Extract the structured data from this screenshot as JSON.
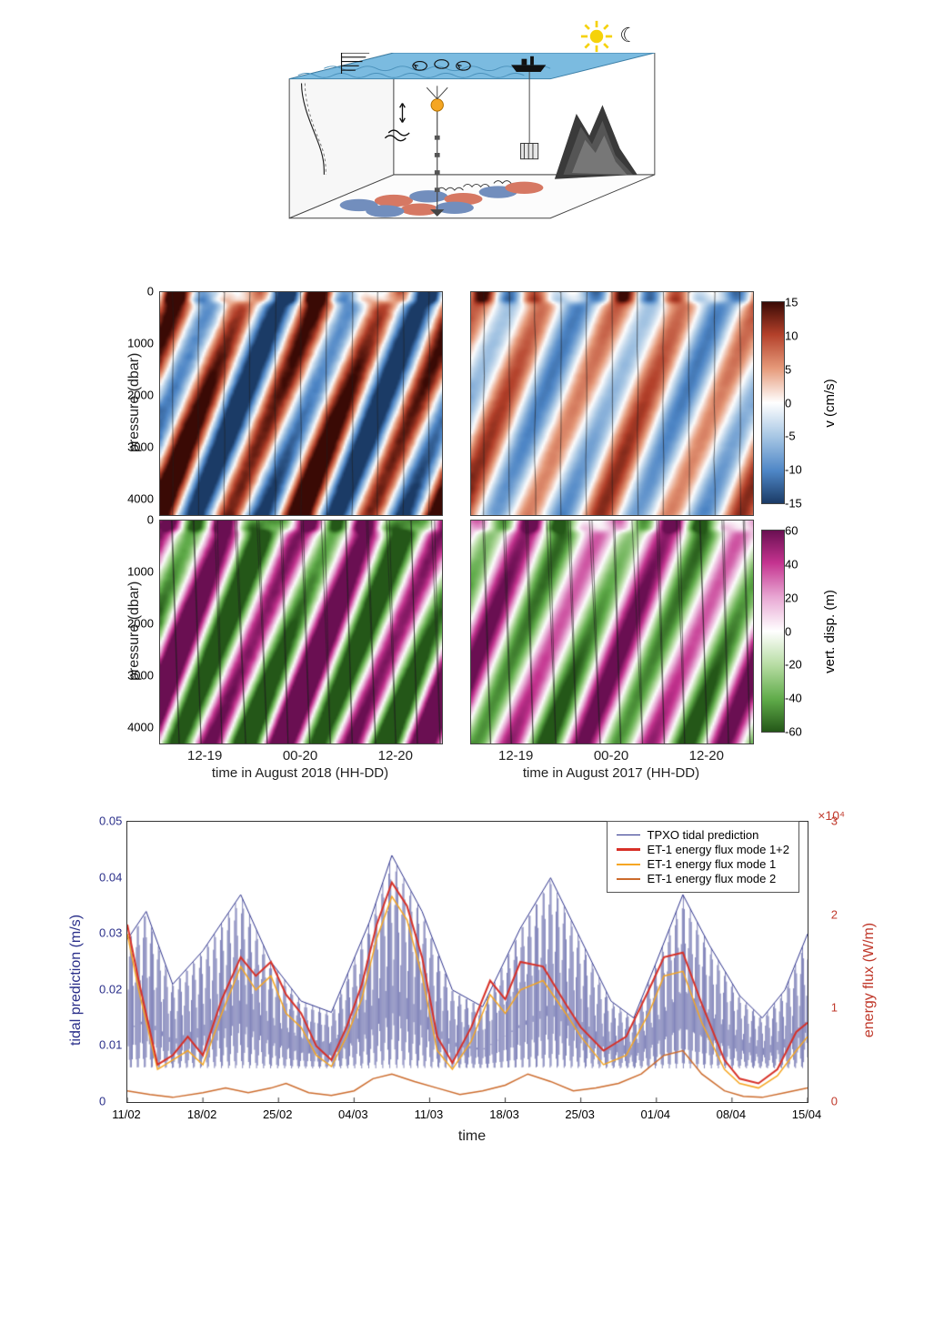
{
  "schematic": {
    "ocean_surface_color": "#7bbbe0",
    "side_wall_color": "#f7f7f7",
    "bottom_pattern_colors": {
      "positive": "#d06249",
      "negative": "#5b7bb3"
    },
    "line_color": "#111111",
    "sun_color": "#f5d20a",
    "moon_glyph": "☾",
    "mooring_float_color": "#f5a623"
  },
  "heatmaps": {
    "y_label": "pressure (dbar)",
    "y_ticks": [
      0,
      1000,
      2000,
      3000,
      4000
    ],
    "x_tick_labels": [
      "12-19",
      "00-20",
      "12-20"
    ],
    "x_label_2018": "time in August 2018 (HH-DD)",
    "x_label_2017": "time in August 2017 (HH-DD)",
    "velocity": {
      "unit_label": "v (cm/s)",
      "ticks": [
        15,
        10,
        5,
        0,
        -5,
        -10,
        -15
      ],
      "cmap_stops": [
        "#3a0a05",
        "#b3402a",
        "#e69a7a",
        "#ffffff",
        "#a6c6e4",
        "#4e86c6",
        "#1b3b66"
      ],
      "cmap_stops_pct": [
        0,
        16,
        33,
        50,
        67,
        84,
        100
      ]
    },
    "displacement": {
      "unit_label": "vert. disp. (m)",
      "ticks": [
        60,
        40,
        20,
        0,
        -20,
        -40,
        -60
      ],
      "cmap_stops": [
        "#6a0f52",
        "#c4338f",
        "#e8a7d3",
        "#ffffff",
        "#b6dca2",
        "#5fab49",
        "#245718"
      ],
      "cmap_stops_pct": [
        0,
        16,
        33,
        50,
        67,
        84,
        100
      ]
    }
  },
  "timeseries": {
    "y_left": {
      "label": "tidal prediction (m/s)",
      "ticks": [
        0,
        0.01,
        0.02,
        0.03,
        0.04,
        0.05
      ],
      "lim": [
        0,
        0.05
      ],
      "color": "#2a2f8a"
    },
    "y_right": {
      "label": "energy flux (W/m)",
      "ticks": [
        0,
        1,
        2,
        3
      ],
      "lim": [
        0,
        3
      ],
      "exponent": "×10⁴",
      "color": "#c0392b"
    },
    "x": {
      "label": "time",
      "ticks": [
        "11/02",
        "18/02",
        "25/02",
        "04/03",
        "11/03",
        "18/03",
        "25/03",
        "01/04",
        "08/04",
        "15/04"
      ]
    },
    "legend": [
      {
        "label": "TPXO tidal prediction",
        "color": "#2a2f8a",
        "width": 1
      },
      {
        "label": "ET-1 energy flux mode 1+2",
        "color": "#d73027",
        "width": 2
      },
      {
        "label": "ET-1 energy flux mode 1",
        "color": "#f5a623",
        "width": 1.5
      },
      {
        "label": "ET-1 energy flux mode 2",
        "color": "#cc6b2c",
        "width": 1.5
      }
    ],
    "tidal_envelope": [
      [
        0,
        0.029
      ],
      [
        0.25,
        0.034
      ],
      [
        0.6,
        0.021
      ],
      [
        1.0,
        0.027
      ],
      [
        1.5,
        0.037
      ],
      [
        1.9,
        0.025
      ],
      [
        2.3,
        0.018
      ],
      [
        2.7,
        0.016
      ],
      [
        3.2,
        0.032
      ],
      [
        3.5,
        0.044
      ],
      [
        3.9,
        0.034
      ],
      [
        4.3,
        0.02
      ],
      [
        4.7,
        0.017
      ],
      [
        5.2,
        0.031
      ],
      [
        5.6,
        0.04
      ],
      [
        6.0,
        0.029
      ],
      [
        6.4,
        0.018
      ],
      [
        6.7,
        0.015
      ],
      [
        7.0,
        0.025
      ],
      [
        7.35,
        0.037
      ],
      [
        7.7,
        0.028
      ],
      [
        8.1,
        0.019
      ],
      [
        8.4,
        0.015
      ],
      [
        8.7,
        0.02
      ],
      [
        9.0,
        0.03
      ]
    ],
    "tidal_lower": 0.006,
    "mode12": [
      [
        0,
        1.9
      ],
      [
        0.15,
        1.3
      ],
      [
        0.4,
        0.4
      ],
      [
        0.6,
        0.5
      ],
      [
        0.8,
        0.7
      ],
      [
        1.0,
        0.5
      ],
      [
        1.25,
        1.1
      ],
      [
        1.5,
        1.55
      ],
      [
        1.7,
        1.35
      ],
      [
        1.9,
        1.5
      ],
      [
        2.1,
        1.15
      ],
      [
        2.3,
        0.95
      ],
      [
        2.5,
        0.6
      ],
      [
        2.7,
        0.45
      ],
      [
        2.9,
        0.8
      ],
      [
        3.1,
        1.25
      ],
      [
        3.3,
        1.9
      ],
      [
        3.5,
        2.35
      ],
      [
        3.7,
        2.1
      ],
      [
        3.9,
        1.55
      ],
      [
        4.1,
        0.7
      ],
      [
        4.3,
        0.42
      ],
      [
        4.55,
        0.8
      ],
      [
        4.8,
        1.3
      ],
      [
        5.0,
        1.1
      ],
      [
        5.2,
        1.5
      ],
      [
        5.5,
        1.45
      ],
      [
        5.8,
        1.05
      ],
      [
        6.0,
        0.8
      ],
      [
        6.3,
        0.55
      ],
      [
        6.6,
        0.7
      ],
      [
        6.9,
        1.2
      ],
      [
        7.1,
        1.55
      ],
      [
        7.35,
        1.6
      ],
      [
        7.6,
        1.05
      ],
      [
        7.9,
        0.45
      ],
      [
        8.1,
        0.25
      ],
      [
        8.35,
        0.2
      ],
      [
        8.6,
        0.35
      ],
      [
        8.85,
        0.75
      ],
      [
        9.0,
        0.85
      ]
    ],
    "mode1": [
      [
        0,
        1.8
      ],
      [
        0.15,
        1.2
      ],
      [
        0.4,
        0.35
      ],
      [
        0.6,
        0.45
      ],
      [
        0.8,
        0.55
      ],
      [
        1.0,
        0.4
      ],
      [
        1.25,
        0.95
      ],
      [
        1.5,
        1.45
      ],
      [
        1.7,
        1.2
      ],
      [
        1.9,
        1.35
      ],
      [
        2.1,
        0.95
      ],
      [
        2.3,
        0.8
      ],
      [
        2.5,
        0.5
      ],
      [
        2.7,
        0.38
      ],
      [
        2.9,
        0.7
      ],
      [
        3.1,
        1.1
      ],
      [
        3.3,
        1.75
      ],
      [
        3.5,
        2.2
      ],
      [
        3.7,
        1.95
      ],
      [
        3.9,
        1.35
      ],
      [
        4.1,
        0.55
      ],
      [
        4.3,
        0.35
      ],
      [
        4.55,
        0.65
      ],
      [
        4.8,
        1.15
      ],
      [
        5.0,
        0.95
      ],
      [
        5.2,
        1.2
      ],
      [
        5.5,
        1.3
      ],
      [
        5.8,
        0.95
      ],
      [
        6.0,
        0.7
      ],
      [
        6.3,
        0.4
      ],
      [
        6.6,
        0.5
      ],
      [
        6.9,
        0.95
      ],
      [
        7.1,
        1.35
      ],
      [
        7.35,
        1.4
      ],
      [
        7.6,
        0.85
      ],
      [
        7.9,
        0.35
      ],
      [
        8.1,
        0.2
      ],
      [
        8.35,
        0.15
      ],
      [
        8.6,
        0.28
      ],
      [
        8.85,
        0.55
      ],
      [
        9.0,
        0.7
      ]
    ],
    "mode2": [
      [
        0,
        0.12
      ],
      [
        0.3,
        0.08
      ],
      [
        0.6,
        0.05
      ],
      [
        1.0,
        0.1
      ],
      [
        1.3,
        0.15
      ],
      [
        1.6,
        0.1
      ],
      [
        1.9,
        0.15
      ],
      [
        2.1,
        0.2
      ],
      [
        2.4,
        0.1
      ],
      [
        2.7,
        0.07
      ],
      [
        3.0,
        0.12
      ],
      [
        3.25,
        0.25
      ],
      [
        3.5,
        0.3
      ],
      [
        3.8,
        0.22
      ],
      [
        4.1,
        0.15
      ],
      [
        4.4,
        0.08
      ],
      [
        4.7,
        0.12
      ],
      [
        5.0,
        0.18
      ],
      [
        5.3,
        0.3
      ],
      [
        5.6,
        0.22
      ],
      [
        5.9,
        0.12
      ],
      [
        6.2,
        0.15
      ],
      [
        6.5,
        0.2
      ],
      [
        6.8,
        0.3
      ],
      [
        7.1,
        0.5
      ],
      [
        7.35,
        0.55
      ],
      [
        7.6,
        0.3
      ],
      [
        7.9,
        0.12
      ],
      [
        8.15,
        0.06
      ],
      [
        8.4,
        0.05
      ],
      [
        8.7,
        0.1
      ],
      [
        9.0,
        0.15
      ]
    ]
  }
}
